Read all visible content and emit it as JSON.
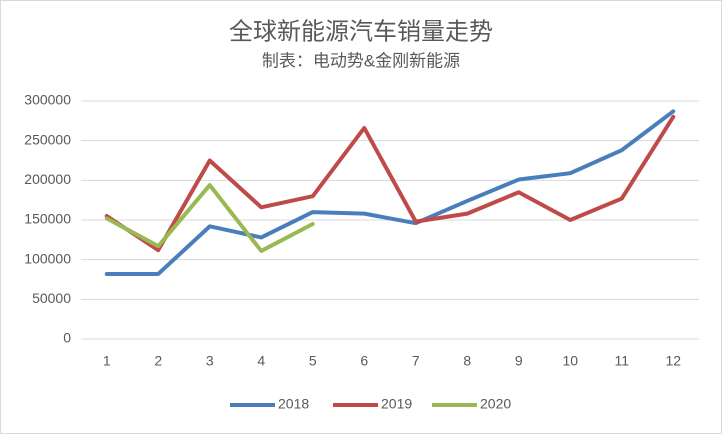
{
  "chart_data": {
    "type": "line",
    "title": "全球新能源汽车销量走势",
    "subtitle": "制表：电动势&金刚新能源",
    "categories": [
      "1",
      "2",
      "3",
      "4",
      "5",
      "6",
      "7",
      "8",
      "9",
      "10",
      "11",
      "12"
    ],
    "series": [
      {
        "name": "2018",
        "color": "#4a7ebb",
        "values": [
          82000,
          82000,
          142000,
          128000,
          160000,
          158000,
          146000,
          174000,
          201000,
          209000,
          238000,
          287000
        ]
      },
      {
        "name": "2019",
        "color": "#be4b48",
        "values": [
          155000,
          112000,
          225000,
          166000,
          180000,
          266000,
          148000,
          158000,
          185000,
          150000,
          177000,
          280000
        ]
      },
      {
        "name": "2020",
        "color": "#98b954",
        "values": [
          152000,
          117000,
          194000,
          111000,
          145000,
          null,
          null,
          null,
          null,
          null,
          null,
          null
        ]
      }
    ],
    "ylim": [
      0,
      300000
    ],
    "yticks": [
      0,
      50000,
      100000,
      150000,
      200000,
      250000,
      300000
    ],
    "grid": true,
    "legend": "bottom"
  }
}
